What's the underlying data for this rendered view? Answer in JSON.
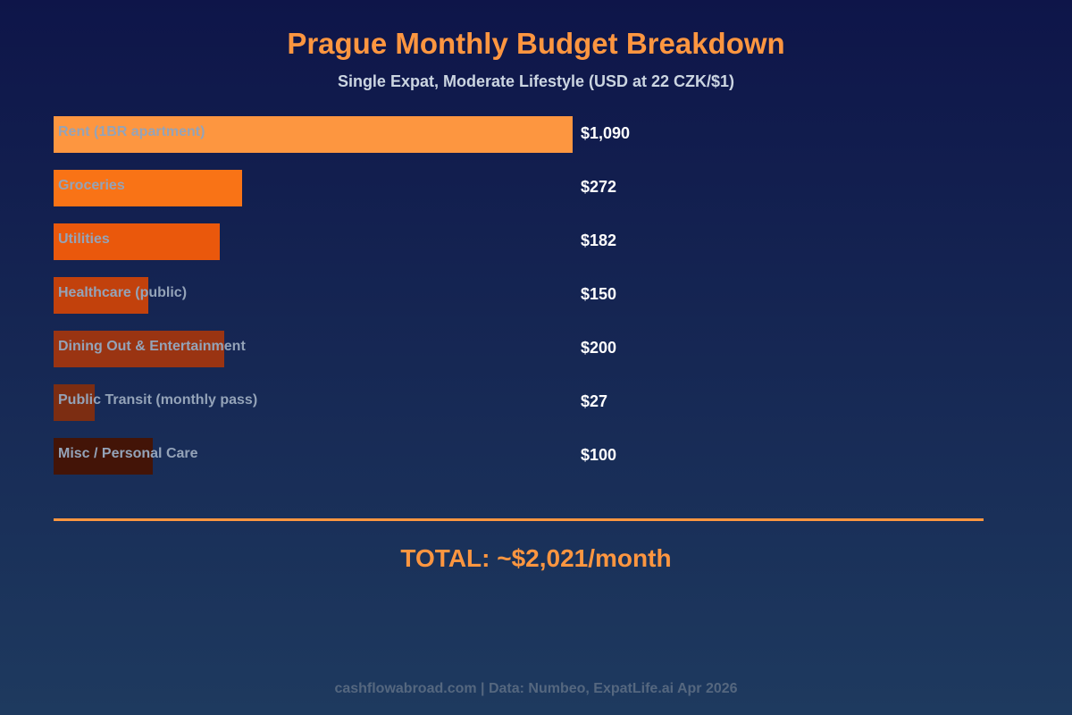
{
  "chart_data": {
    "type": "bar",
    "orientation": "horizontal",
    "title": "Prague Monthly Budget Breakdown",
    "subtitle": "Single Expat, Moderate Lifestyle (USD at 22 CZK/$1)",
    "categories": [
      "Rent (1BR apartment)",
      "Groceries",
      "Utilities",
      "Healthcare (public)",
      "Dining Out & Entertainment",
      "Public Transit (monthly pass)",
      "Misc / Personal Care"
    ],
    "values": [
      1090,
      272,
      182,
      150,
      200,
      27,
      100
    ],
    "value_labels": [
      "$1,090",
      "$272",
      "$182",
      "$150",
      "$200",
      "$27",
      "$100"
    ],
    "colors": [
      "#fd9640",
      "#f97316",
      "#ea580c",
      "#c2410c",
      "#9a3412",
      "#7c2d12",
      "#431407"
    ],
    "grid": false,
    "total": "TOTAL: ~$2,021/month"
  },
  "footer": "cashflowabroad.com | Data: Numbeo, ExpatLife.ai Apr 2026"
}
